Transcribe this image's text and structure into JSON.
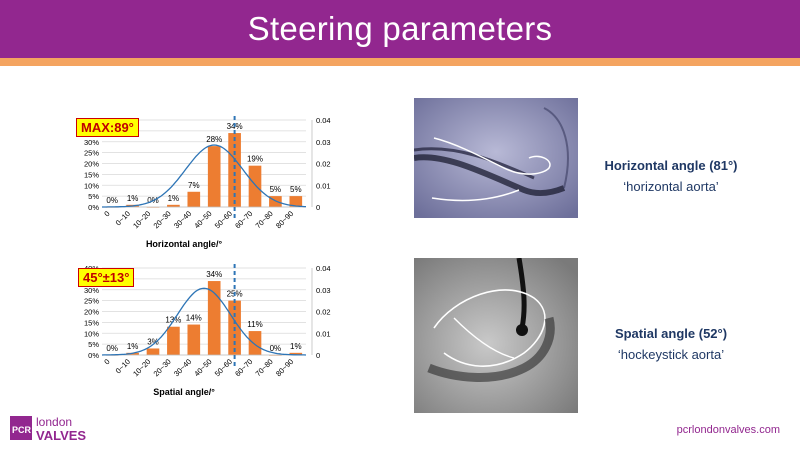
{
  "title": "Steering parameters",
  "footer": {
    "site": "pcrlondonvalves.com",
    "logo_pcr": "PCR",
    "logo_london": "london",
    "logo_valves": "VALVES"
  },
  "colors": {
    "title_bg": "#92278f",
    "accent_bar": "#f4a460",
    "bar": "#ed7d31",
    "curve": "#2e75b6",
    "dashed_line": "#2e75b6",
    "caption": "#1f3864"
  },
  "images": [
    {
      "title": "Horizontal  angle (81°)",
      "subtitle": "‘horizontal aorta’"
    },
    {
      "title": "Spatial  angle (52°)",
      "subtitle": "‘hockeystick aorta’"
    }
  ],
  "chart_data": [
    {
      "type": "bar",
      "badge": "MAX:89°",
      "xlabel": "Horizontal angle/°",
      "categories": [
        "0",
        "0~10",
        "10~20",
        "20~30",
        "30~40",
        "40~50",
        "50~60",
        "60~70",
        "70~80",
        "80~90"
      ],
      "values": [
        0,
        1,
        0,
        1,
        7,
        28,
        34,
        19,
        5,
        5
      ],
      "data_labels": [
        "0%",
        "1%",
        "0%",
        "1%",
        "7%",
        "28%",
        "34%",
        "19%",
        "5%",
        "5%"
      ],
      "y_ticks": [
        "0%",
        "5%",
        "10%",
        "15%",
        "20%",
        "25%",
        "30%",
        "35%",
        "40%"
      ],
      "ylim": [
        0,
        40
      ],
      "y2_ticks": [
        "0",
        "0.01",
        "0.02",
        "0.03",
        "0.04"
      ],
      "y2lim": [
        0,
        0.04
      ],
      "curve": {
        "type": "normal density",
        "mean": 50,
        "sd": 14
      },
      "dashed_line_x": 60,
      "grid": true
    },
    {
      "type": "bar",
      "badge": "45°±13°",
      "xlabel": "Spatial angle/°",
      "categories": [
        "0",
        "0~10",
        "10~20",
        "20~30",
        "30~40",
        "40~50",
        "50~60",
        "60~70",
        "70~80",
        "80~90"
      ],
      "values": [
        0,
        1,
        3,
        13,
        14,
        34,
        25,
        11,
        0,
        1
      ],
      "data_labels": [
        "0%",
        "1%",
        "3%",
        "13%",
        "14%",
        "34%",
        "25%",
        "11%",
        "0%",
        "1%"
      ],
      "y_ticks": [
        "0%",
        "5%",
        "10%",
        "15%",
        "20%",
        "25%",
        "30%",
        "35%",
        "40%"
      ],
      "ylim": [
        0,
        40
      ],
      "y2_ticks": [
        "0",
        "0.01",
        "0.02",
        "0.03",
        "0.04"
      ],
      "y2lim": [
        0,
        0.04
      ],
      "curve": {
        "type": "normal density",
        "mean": 45,
        "sd": 13
      },
      "dashed_line_x": 60,
      "grid": true
    }
  ]
}
